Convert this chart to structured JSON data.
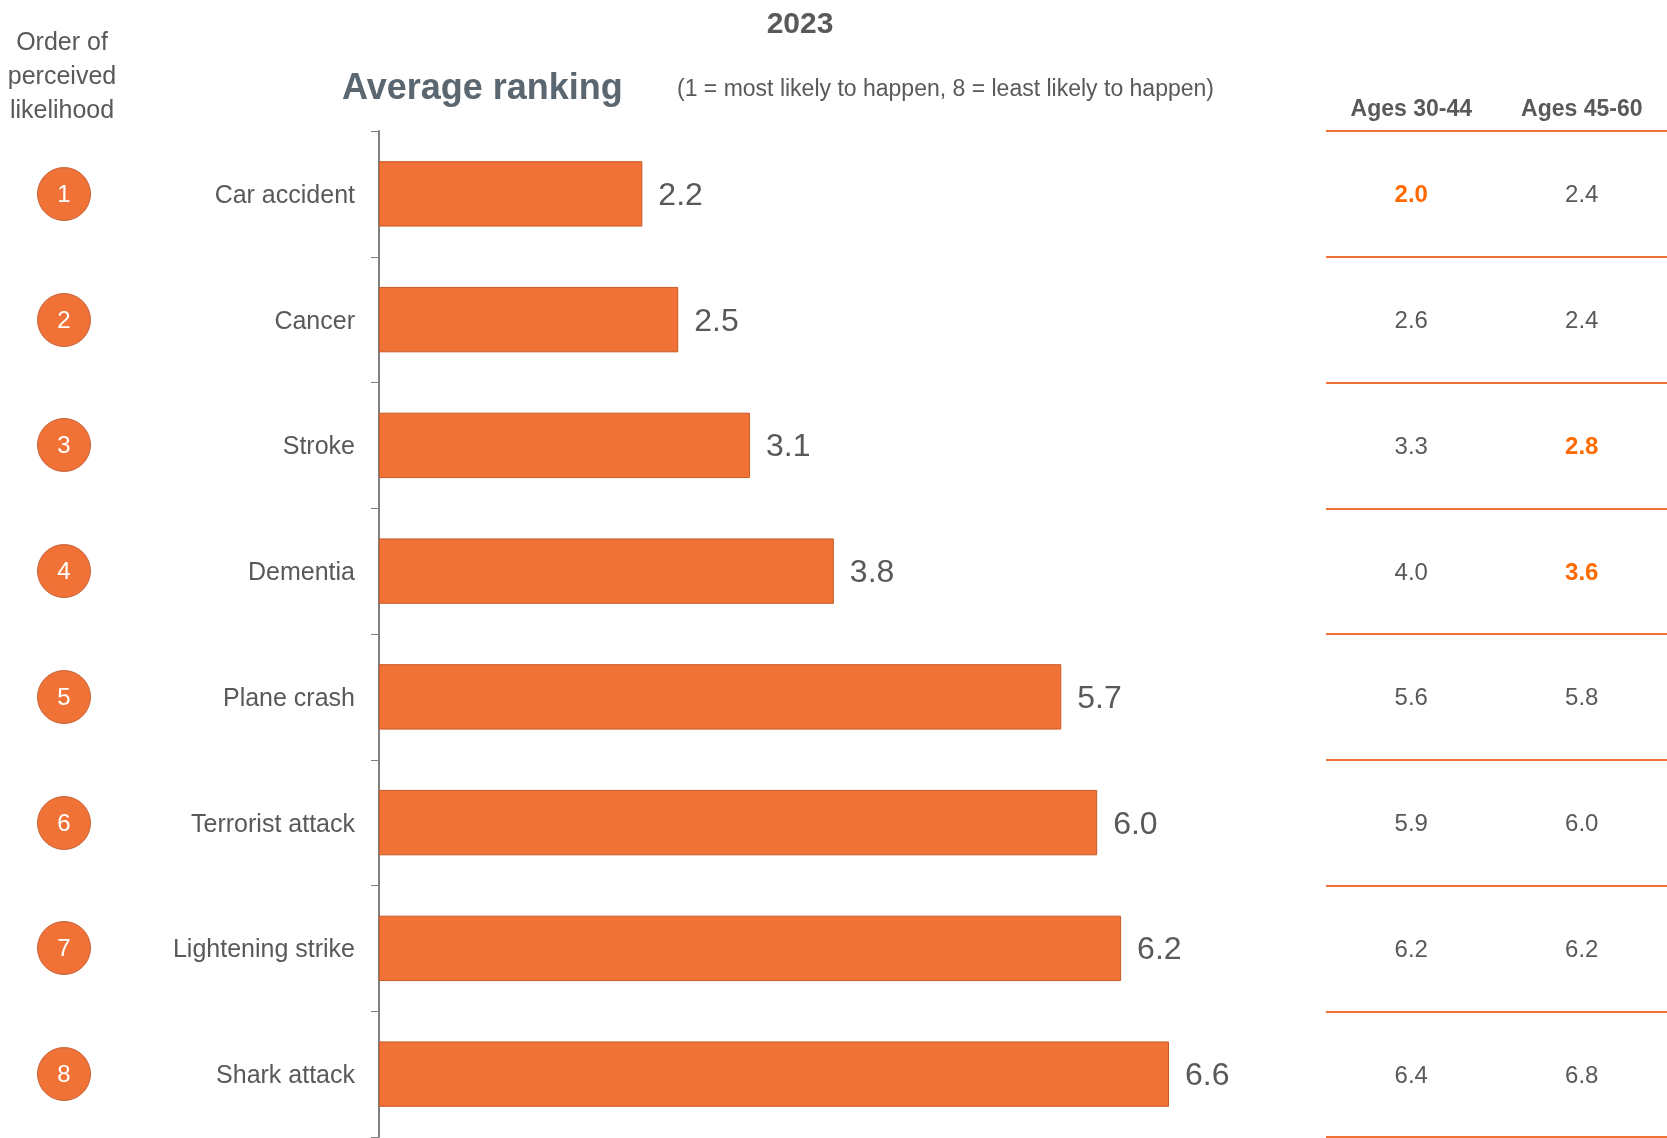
{
  "chart_data": [
    {
      "type": "bar",
      "title": "2023",
      "subtitle": "Average ranking",
      "orientation": "horizontal",
      "categories": [
        "Car accident",
        "Cancer",
        "Stroke",
        "Dementia",
        "Plane crash",
        "Terrorist attack",
        "Lightening strike",
        "Shark attack"
      ],
      "values": [
        2.2,
        2.5,
        3.1,
        3.8,
        5.7,
        6.0,
        6.2,
        6.6
      ],
      "value_labels": [
        "2.2",
        "2.5",
        "3.1",
        "3.8",
        "5.7",
        "6.0",
        "6.2",
        "6.6"
      ],
      "color": "#f07236",
      "annotations": [
        "(1 = most likely to happen, 8 = least likely to happen)",
        "Order of perceived likelihood",
        "1",
        "2",
        "3",
        "4",
        "5",
        "6",
        "7",
        "8"
      ]
    },
    {
      "type": "heatmap",
      "categories": [
        "Ages 30-44",
        "Ages 45-60"
      ],
      "y_categories": [
        null,
        null,
        null,
        null,
        null,
        null,
        null,
        null
      ],
      "grid": "y",
      "tick_labels": "x",
      "cells": [
        [
          2.0,
          2.4
        ],
        [
          2.6,
          2.4
        ],
        [
          3.3,
          2.8
        ],
        [
          4.0,
          3.6
        ],
        [
          5.6,
          5.8
        ],
        [
          5.9,
          6.0
        ],
        [
          6.2,
          6.2
        ],
        [
          6.4,
          6.8
        ]
      ],
      "cell_labels": [
        [
          "2.0",
          "2.4"
        ],
        [
          "2.6",
          "2.4"
        ],
        [
          "3.3",
          "2.8"
        ],
        [
          "4.0",
          "3.6"
        ],
        [
          "5.6",
          "5.8"
        ],
        [
          "5.9",
          "6.0"
        ],
        [
          "6.2",
          "6.2"
        ],
        [
          "6.4",
          "6.8"
        ]
      ],
      "colors": [
        [
          "#ff6a00",
          "#595959"
        ],
        [
          "#595959",
          "#595959"
        ],
        [
          "#595959",
          "#ff6a00"
        ],
        [
          "#595959",
          "#ff6a00"
        ],
        [
          "#595959",
          "#595959"
        ],
        [
          "#595959",
          "#595959"
        ],
        [
          "#595959",
          "#595959"
        ],
        [
          "#595959",
          "#595959"
        ]
      ]
    }
  ]
}
